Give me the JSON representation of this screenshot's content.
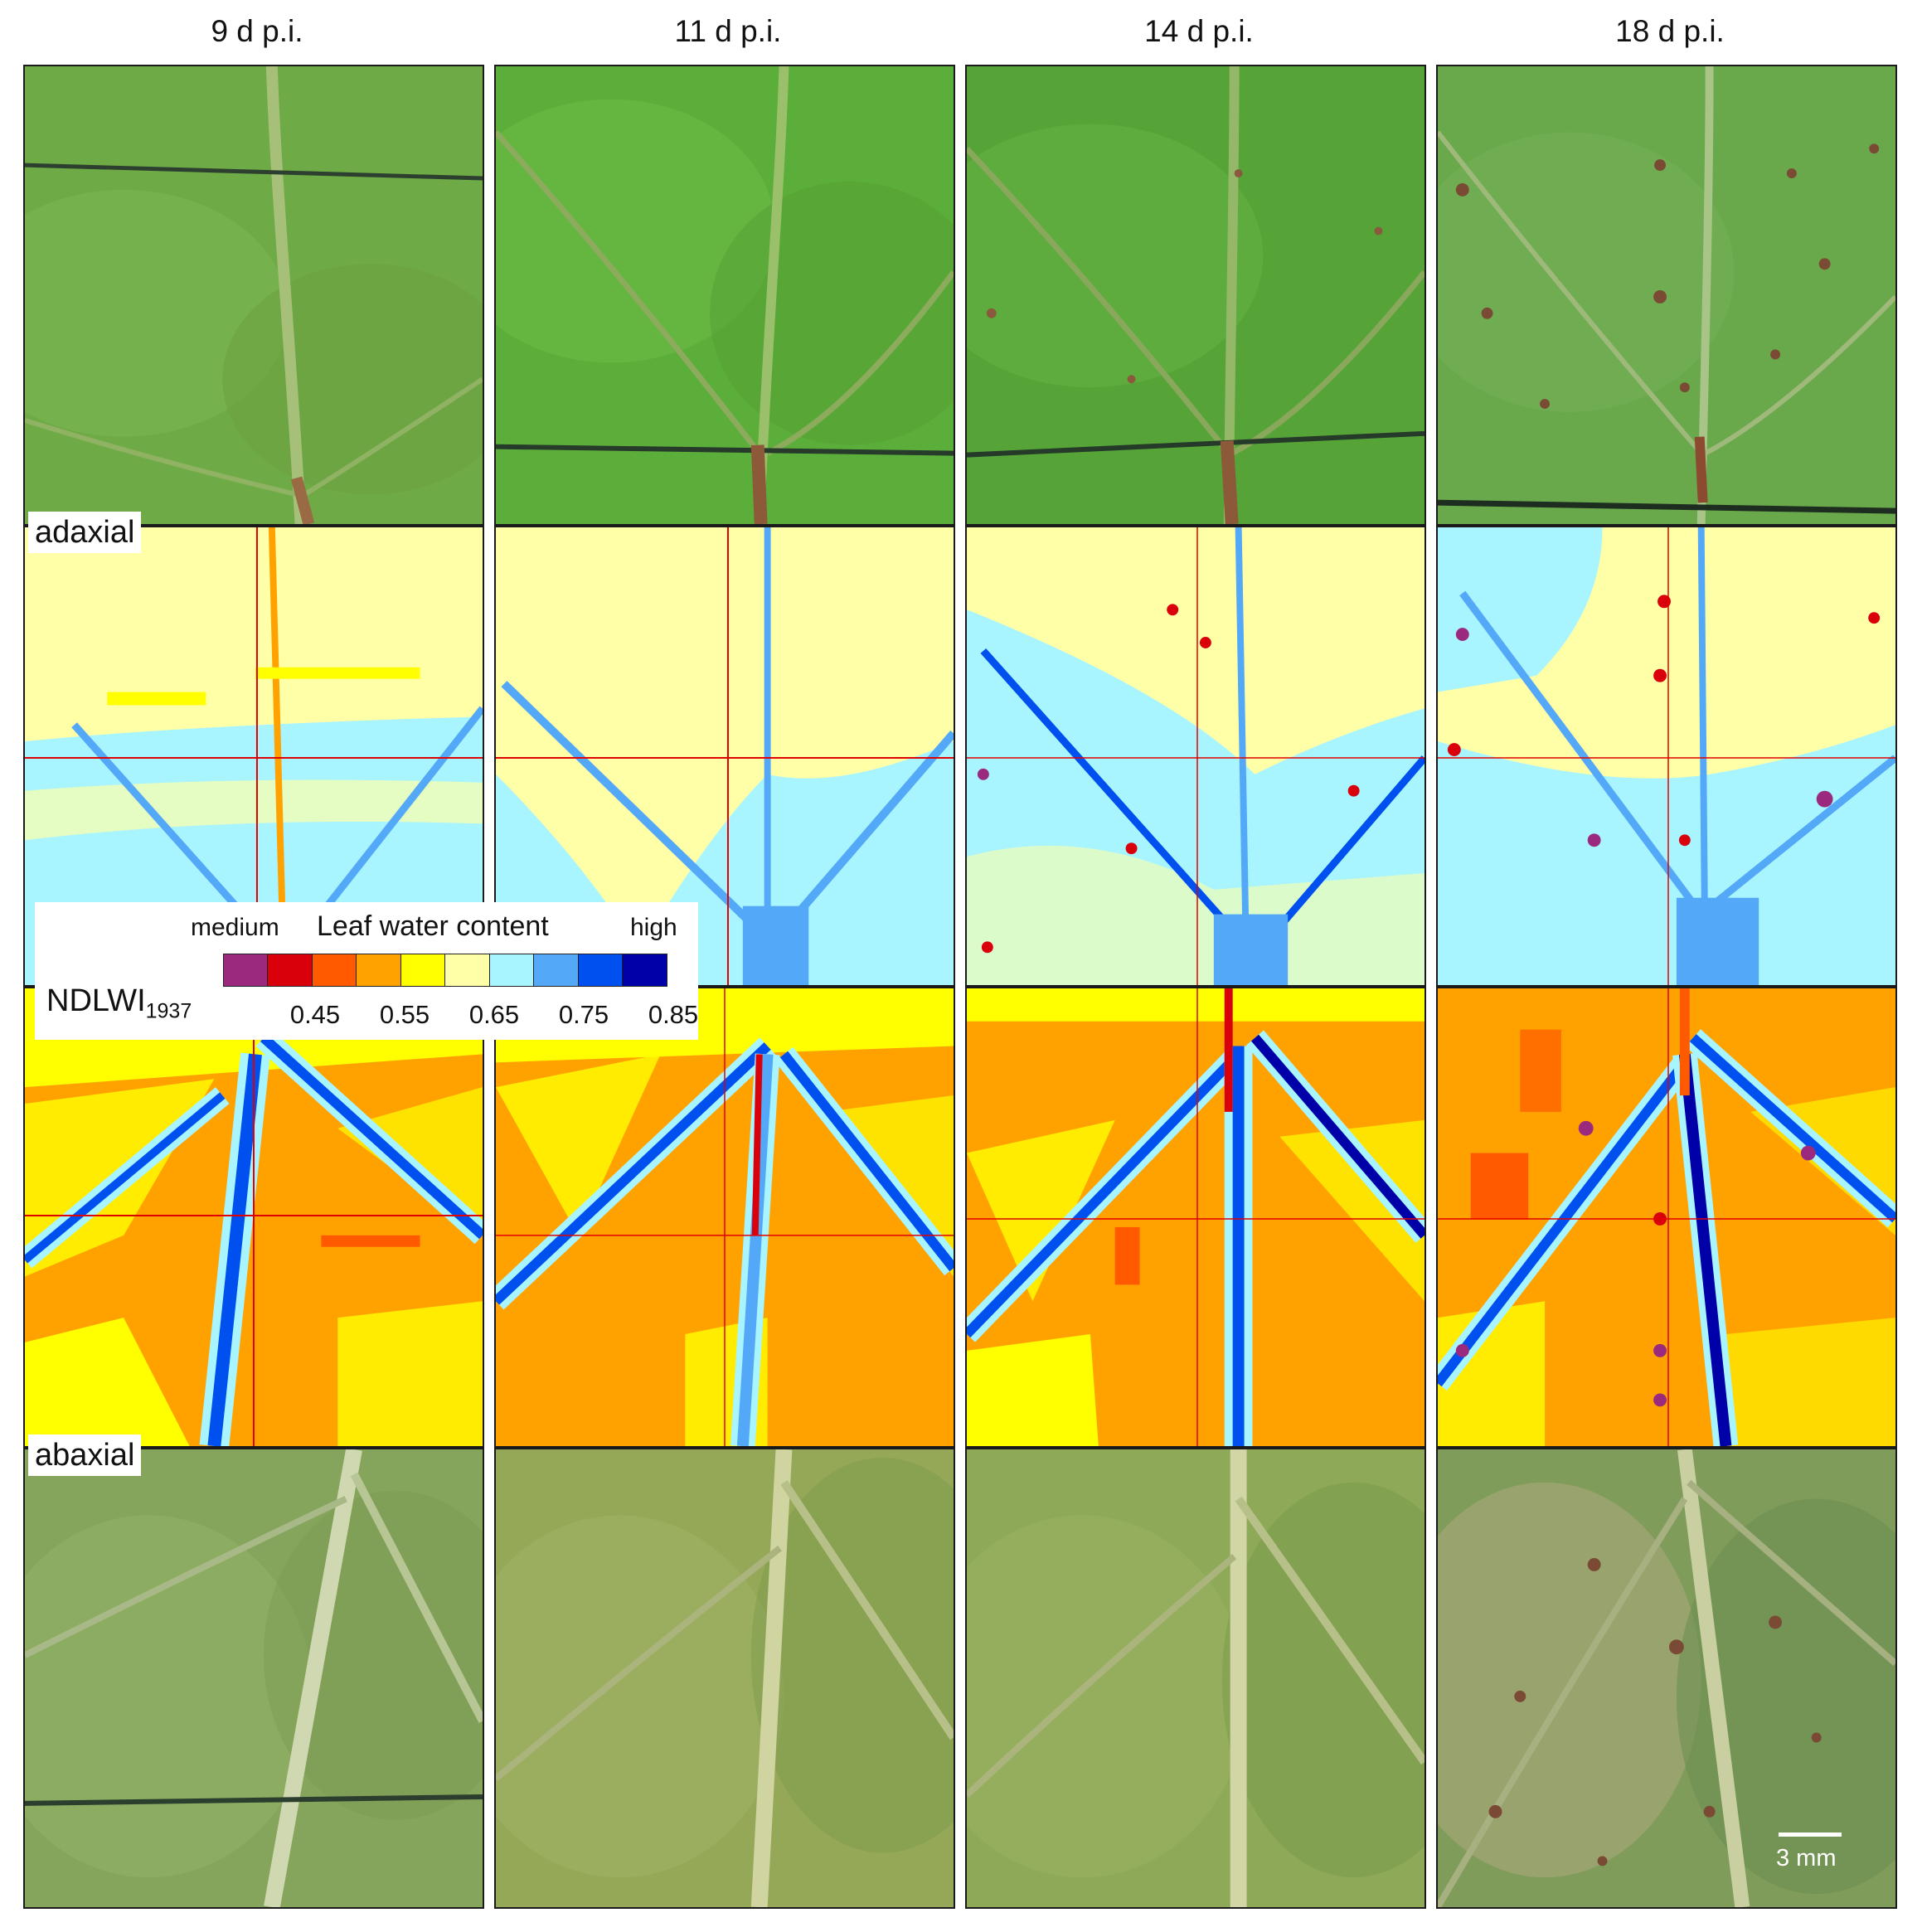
{
  "figure": {
    "columns": [
      "9 d p.i.",
      "11 d p.i.",
      "14 d p.i.",
      "18 d p.i."
    ],
    "row_labels": {
      "adaxial": "adaxial",
      "abaxial": "abaxial"
    },
    "legend": {
      "title": "Leaf water content",
      "low_label": "medium",
      "high_label": "high",
      "index_name": "NDLWI",
      "index_subscript": "1937",
      "ticks": [
        "0.45",
        "0.55",
        "0.65",
        "0.75",
        "0.85"
      ],
      "colors": [
        "#9b2a7e",
        "#d9000b",
        "#ff5a00",
        "#ffa200",
        "#ffff00",
        "#ffffa8",
        "#a8f4ff",
        "#54a8f8",
        "#0050f0",
        "#0000a8"
      ]
    },
    "scale_bar": "3 mm"
  }
}
